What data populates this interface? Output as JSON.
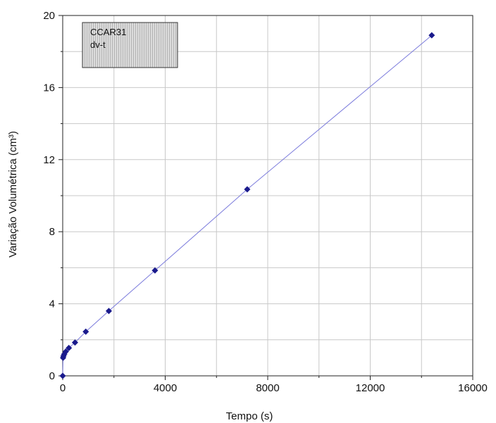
{
  "chart_data": {
    "type": "line",
    "title": "",
    "xlabel": "Tempo (s)",
    "ylabel": "Variação Volumétrica (cm³)",
    "xlim": [
      0,
      16000
    ],
    "ylim": [
      0,
      20
    ],
    "x_ticks": [
      "0",
      "4000",
      "8000",
      "12000",
      "16000"
    ],
    "y_ticks": [
      "0",
      "4",
      "8",
      "12",
      "16",
      "20"
    ],
    "grid": true,
    "legend": {
      "lines": [
        "CCAR31",
        "dv-t"
      ],
      "placement": "top-left"
    },
    "series": [
      {
        "color": "#1a1a8c",
        "line_color": "#7b7bdc",
        "marker": "diamond",
        "x": [
          0,
          15,
          30,
          60,
          120,
          240,
          480,
          900,
          1800,
          3600,
          7200,
          14400
        ],
        "y": [
          0,
          1.0,
          1.1,
          1.2,
          1.35,
          1.55,
          1.85,
          2.45,
          3.6,
          5.85,
          10.35,
          18.9
        ]
      }
    ]
  }
}
